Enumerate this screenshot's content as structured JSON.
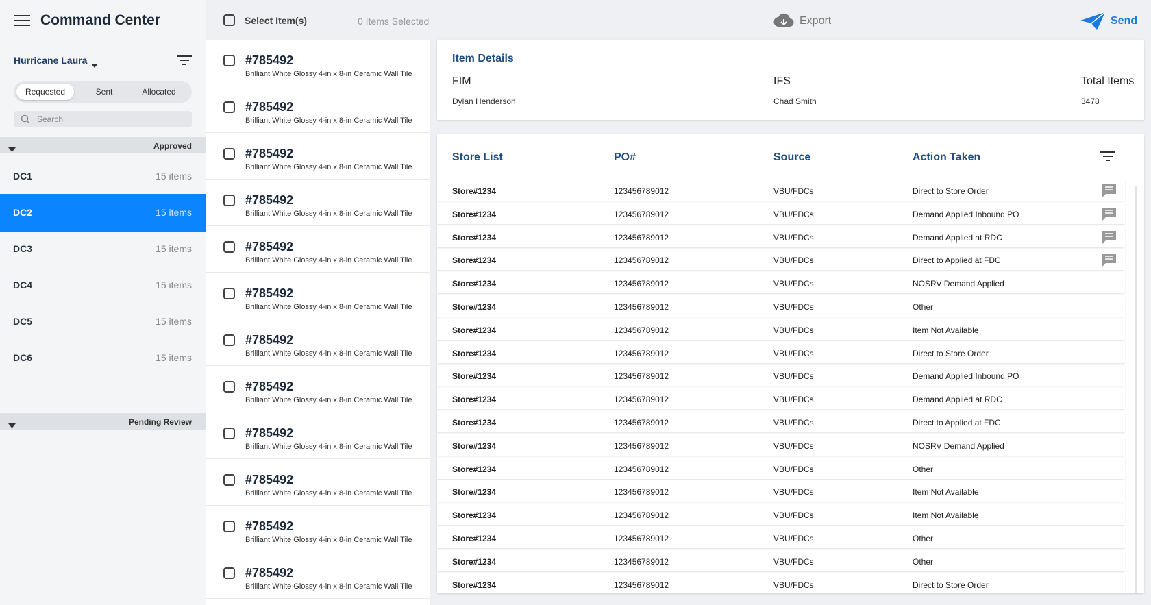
{
  "header": {
    "title": "Command Center",
    "event": "Hurricane Laura",
    "tabs": [
      "Requested",
      "Sent",
      "Allocated"
    ],
    "search_placeholder": "Search",
    "select_label": "Select Item(s)",
    "selected_count": "0 Items Selected",
    "export": "Export",
    "send": "Send"
  },
  "groups": [
    {
      "label": "Approved",
      "rows": [
        {
          "name": "DC1",
          "count": "15 items"
        },
        {
          "name": "DC2",
          "count": "15 items",
          "selected": true
        },
        {
          "name": "DC3",
          "count": "15 items"
        },
        {
          "name": "DC4",
          "count": "15 items"
        },
        {
          "name": "DC5",
          "count": "15 items"
        },
        {
          "name": "DC6",
          "count": "15 items"
        }
      ]
    },
    {
      "label": "Pending Review",
      "rows": []
    }
  ],
  "items": [
    {
      "id": "#785492",
      "desc": "Brilliant White Glossy 4-in x 8-in Ceramic Wall Tile"
    },
    {
      "id": "#785492",
      "desc": "Brilliant White Glossy 4-in x 8-in Ceramic Wall Tile"
    },
    {
      "id": "#785492",
      "desc": "Brilliant White Glossy 4-in x 8-in Ceramic Wall Tile"
    },
    {
      "id": "#785492",
      "desc": "Brilliant White Glossy 4-in x 8-in Ceramic Wall Tile"
    },
    {
      "id": "#785492",
      "desc": "Brilliant White Glossy 4-in x 8-in Ceramic Wall Tile"
    },
    {
      "id": "#785492",
      "desc": "Brilliant White Glossy 4-in x 8-in Ceramic Wall Tile"
    },
    {
      "id": "#785492",
      "desc": "Brilliant White Glossy 4-in x 8-in Ceramic Wall Tile"
    },
    {
      "id": "#785492",
      "desc": "Brilliant White Glossy 4-in x 8-in Ceramic Wall Tile"
    },
    {
      "id": "#785492",
      "desc": "Brilliant White Glossy 4-in x 8-in Ceramic Wall Tile"
    },
    {
      "id": "#785492",
      "desc": "Brilliant White Glossy 4-in x 8-in Ceramic Wall Tile"
    },
    {
      "id": "#785492",
      "desc": "Brilliant White Glossy 4-in x 8-in Ceramic Wall Tile"
    },
    {
      "id": "#785492",
      "desc": "Brilliant White Glossy 4-in x 8-in Ceramic Wall Tile"
    }
  ],
  "details": {
    "title": "Item Details",
    "fields": [
      {
        "label": "FIM",
        "value": "Dylan Henderson"
      },
      {
        "label": "IFS",
        "value": "Chad Smith"
      },
      {
        "label": "Total Items",
        "value": "3478"
      }
    ]
  },
  "table": {
    "columns": [
      "Store List",
      "PO#",
      "Source",
      "Action Taken"
    ],
    "rows": [
      {
        "cells": [
          "Store#1234",
          "123456789012",
          "VBU/FDCs",
          "Direct to Store Order"
        ],
        "comment": true
      },
      {
        "cells": [
          "Store#1234",
          "123456789012",
          "VBU/FDCs",
          "Demand Applied Inbound PO"
        ],
        "comment": true
      },
      {
        "cells": [
          "Store#1234",
          "123456789012",
          "VBU/FDCs",
          "Demand Applied at RDC"
        ],
        "comment": true
      },
      {
        "cells": [
          "Store#1234",
          "123456789012",
          "VBU/FDCs",
          "Direct to Applied at FDC"
        ],
        "comment": true
      },
      {
        "cells": [
          "Store#1234",
          "123456789012",
          "VBU/FDCs",
          "NOSRV Demand Applied"
        ]
      },
      {
        "cells": [
          "Store#1234",
          "123456789012",
          "VBU/FDCs",
          "Other"
        ]
      },
      {
        "cells": [
          "Store#1234",
          "123456789012",
          "VBU/FDCs",
          "Item Not Available"
        ]
      },
      {
        "cells": [
          "Store#1234",
          "123456789012",
          "VBU/FDCs",
          "Direct to Store Order"
        ]
      },
      {
        "cells": [
          "Store#1234",
          "123456789012",
          "VBU/FDCs",
          "Demand Applied Inbound PO"
        ]
      },
      {
        "cells": [
          "Store#1234",
          "123456789012",
          "VBU/FDCs",
          "Demand Applied at RDC"
        ]
      },
      {
        "cells": [
          "Store#1234",
          "123456789012",
          "VBU/FDCs",
          "Direct to Applied at FDC"
        ]
      },
      {
        "cells": [
          "Store#1234",
          "123456789012",
          "VBU/FDCs",
          "NOSRV Demand Applied"
        ]
      },
      {
        "cells": [
          "Store#1234",
          "123456789012",
          "VBU/FDCs",
          "Other"
        ]
      },
      {
        "cells": [
          "Store#1234",
          "123456789012",
          "VBU/FDCs",
          "Item Not Available"
        ]
      },
      {
        "cells": [
          "Store#1234",
          "123456789012",
          "VBU/FDCs",
          "Item Not Available"
        ]
      },
      {
        "cells": [
          "Store#1234",
          "123456789012",
          "VBU/FDCs",
          "Other"
        ]
      },
      {
        "cells": [
          "Store#1234",
          "123456789012",
          "VBU/FDCs",
          "Other"
        ]
      },
      {
        "cells": [
          "Store#1234",
          "123456789012",
          "VBU/FDCs",
          "Direct to Store Order"
        ]
      }
    ]
  }
}
